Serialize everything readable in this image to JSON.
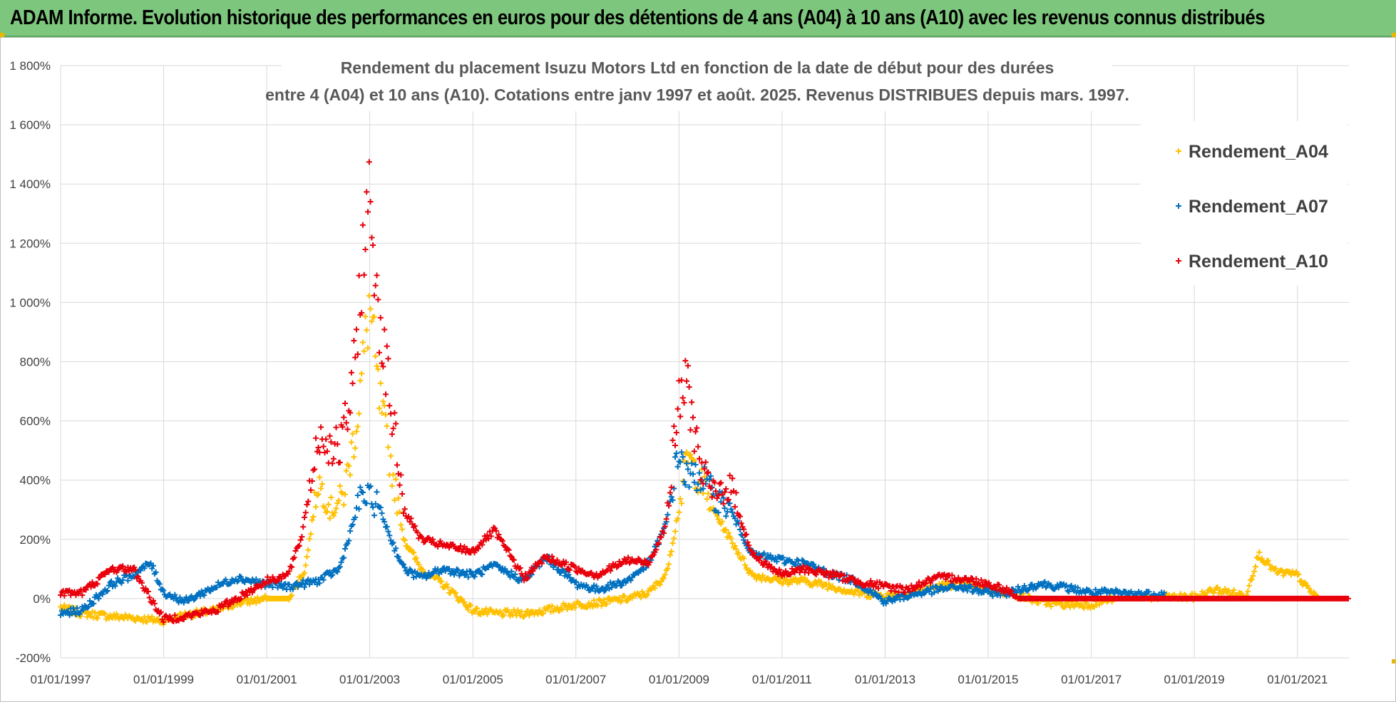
{
  "header": {
    "title": "ADAM Informe. Evolution historique des performances en euros pour des détentions de 4 ans (A04) à 10 ans (A10) avec les revenus connus distribués"
  },
  "chart_data": {
    "type": "scatter",
    "title_line1": "Rendement du placement Isuzu Motors Ltd en fonction de la date de début pour des durées",
    "title_line2": "entre 4 (A04) et 10 ans (A10). Cotations entre janv 1997 et août. 2025. Revenus DISTRIBUES depuis mars. 1997.",
    "x_start": "1997-01-01",
    "x_end": "2022-01-01",
    "xticks": [
      "01/01/1997",
      "01/01/1999",
      "01/01/2001",
      "01/01/2003",
      "01/01/2005",
      "01/01/2007",
      "01/01/2009",
      "01/01/2011",
      "01/01/2013",
      "01/01/2015",
      "01/01/2017",
      "01/01/2019",
      "01/01/2021"
    ],
    "yticks": [
      "-200%",
      "0%",
      "200%",
      "400%",
      "600%",
      "800%",
      "1 000%",
      "1 200%",
      "1 400%",
      "1 600%",
      "1 800%"
    ],
    "ylim": [
      -200,
      1800
    ],
    "grid": true,
    "legend_position": "right",
    "series": [
      {
        "name": "Rendement_A04",
        "color": "#ffc000",
        "end": "2021-06-01",
        "points": [
          [
            "1997-01-01",
            -30
          ],
          [
            "1997-06-01",
            -50
          ],
          [
            "1998-01-01",
            -60
          ],
          [
            "1998-06-01",
            -65
          ],
          [
            "1999-01-01",
            -75
          ],
          [
            "1999-06-01",
            -55
          ],
          [
            "2000-01-01",
            -40
          ],
          [
            "2000-06-01",
            -15
          ],
          [
            "2001-01-01",
            0
          ],
          [
            "2001-06-01",
            0
          ],
          [
            "2001-10-01",
            100
          ],
          [
            "2002-01-01",
            400
          ],
          [
            "2002-04-01",
            300
          ],
          [
            "2002-07-01",
            350
          ],
          [
            "2002-10-01",
            600
          ],
          [
            "2003-01-01",
            1000
          ],
          [
            "2003-03-01",
            700
          ],
          [
            "2003-06-01",
            450
          ],
          [
            "2003-09-01",
            200
          ],
          [
            "2004-01-01",
            100
          ],
          [
            "2004-06-01",
            50
          ],
          [
            "2005-01-01",
            -40
          ],
          [
            "2005-06-01",
            -50
          ],
          [
            "2006-01-01",
            -50
          ],
          [
            "2006-06-01",
            -40
          ],
          [
            "2007-01-01",
            -20
          ],
          [
            "2007-06-01",
            -15
          ],
          [
            "2008-01-01",
            0
          ],
          [
            "2008-06-01",
            20
          ],
          [
            "2008-10-01",
            80
          ],
          [
            "2009-01-01",
            300
          ],
          [
            "2009-03-01",
            480
          ],
          [
            "2009-06-01",
            400
          ],
          [
            "2009-09-01",
            300
          ],
          [
            "2010-01-01",
            200
          ],
          [
            "2010-06-01",
            80
          ],
          [
            "2011-01-01",
            60
          ],
          [
            "2011-06-01",
            60
          ],
          [
            "2012-01-01",
            40
          ],
          [
            "2012-06-01",
            20
          ],
          [
            "2013-01-01",
            10
          ],
          [
            "2013-06-01",
            15
          ],
          [
            "2014-01-01",
            40
          ],
          [
            "2014-06-01",
            50
          ],
          [
            "2015-01-01",
            30
          ],
          [
            "2015-06-01",
            20
          ],
          [
            "2016-01-01",
            -10
          ],
          [
            "2016-06-01",
            -20
          ],
          [
            "2017-01-01",
            -20
          ],
          [
            "2017-06-01",
            0
          ],
          [
            "2018-01-01",
            0
          ],
          [
            "2018-06-01",
            5
          ],
          [
            "2019-01-01",
            5
          ],
          [
            "2019-06-01",
            30
          ],
          [
            "2020-01-01",
            10
          ],
          [
            "2020-04-01",
            150
          ],
          [
            "2020-08-01",
            90
          ],
          [
            "2021-01-01",
            80
          ],
          [
            "2021-03-01",
            40
          ],
          [
            "2021-06-01",
            0
          ]
        ]
      },
      {
        "name": "Rendement_A07",
        "color": "#0070c0",
        "end": "2018-06-01",
        "points": [
          [
            "1997-01-01",
            -50
          ],
          [
            "1997-06-01",
            -40
          ],
          [
            "1998-01-01",
            50
          ],
          [
            "1998-06-01",
            80
          ],
          [
            "1998-10-01",
            120
          ],
          [
            "1999-01-01",
            20
          ],
          [
            "1999-06-01",
            -10
          ],
          [
            "2000-01-01",
            40
          ],
          [
            "2000-06-01",
            70
          ],
          [
            "2001-01-01",
            50
          ],
          [
            "2001-06-01",
            40
          ],
          [
            "2002-01-01",
            60
          ],
          [
            "2002-06-01",
            100
          ],
          [
            "2002-09-01",
            250
          ],
          [
            "2002-11-01",
            350
          ],
          [
            "2003-03-01",
            320
          ],
          [
            "2003-06-01",
            200
          ],
          [
            "2003-09-01",
            100
          ],
          [
            "2004-01-01",
            70
          ],
          [
            "2004-06-01",
            100
          ],
          [
            "2005-01-01",
            80
          ],
          [
            "2005-06-01",
            110
          ],
          [
            "2006-01-01",
            60
          ],
          [
            "2006-06-01",
            140
          ],
          [
            "2007-01-01",
            50
          ],
          [
            "2007-06-01",
            30
          ],
          [
            "2008-01-01",
            60
          ],
          [
            "2008-06-01",
            120
          ],
          [
            "2008-10-01",
            250
          ],
          [
            "2009-01-01",
            500
          ],
          [
            "2009-03-01",
            400
          ],
          [
            "2009-06-01",
            420
          ],
          [
            "2009-09-01",
            350
          ],
          [
            "2010-01-01",
            300
          ],
          [
            "2010-06-01",
            150
          ],
          [
            "2011-01-01",
            130
          ],
          [
            "2011-06-01",
            120
          ],
          [
            "2012-01-01",
            80
          ],
          [
            "2012-06-01",
            60
          ],
          [
            "2013-01-01",
            -10
          ],
          [
            "2013-06-01",
            10
          ],
          [
            "2014-01-01",
            30
          ],
          [
            "2014-06-01",
            40
          ],
          [
            "2015-01-01",
            20
          ],
          [
            "2015-06-01",
            20
          ],
          [
            "2016-01-01",
            50
          ],
          [
            "2016-06-01",
            40
          ],
          [
            "2017-01-01",
            20
          ],
          [
            "2017-06-01",
            20
          ],
          [
            "2018-01-01",
            15
          ],
          [
            "2018-06-01",
            15
          ]
        ]
      },
      {
        "name": "Rendement_A10",
        "color": "#e8000b",
        "end": "2022-01-01",
        "points": [
          [
            "1997-01-01",
            20
          ],
          [
            "1997-06-01",
            20
          ],
          [
            "1998-01-01",
            100
          ],
          [
            "1998-06-01",
            100
          ],
          [
            "1998-10-01",
            0
          ],
          [
            "1999-01-01",
            -70
          ],
          [
            "1999-06-01",
            -60
          ],
          [
            "2000-01-01",
            -40
          ],
          [
            "2000-06-01",
            0
          ],
          [
            "2001-01-01",
            60
          ],
          [
            "2001-06-01",
            80
          ],
          [
            "2001-09-01",
            200
          ],
          [
            "2002-01-01",
            550
          ],
          [
            "2002-06-01",
            500
          ],
          [
            "2002-09-01",
            700
          ],
          [
            "2002-11-01",
            1100
          ],
          [
            "2003-01-01",
            1350
          ],
          [
            "2003-03-01",
            1000
          ],
          [
            "2003-06-01",
            650
          ],
          [
            "2003-09-01",
            300
          ],
          [
            "2004-01-01",
            200
          ],
          [
            "2004-06-01",
            180
          ],
          [
            "2005-01-01",
            160
          ],
          [
            "2005-06-01",
            230
          ],
          [
            "2006-01-01",
            70
          ],
          [
            "2006-06-01",
            140
          ],
          [
            "2007-01-01",
            100
          ],
          [
            "2007-06-01",
            80
          ],
          [
            "2008-01-01",
            130
          ],
          [
            "2008-06-01",
            120
          ],
          [
            "2008-10-01",
            250
          ],
          [
            "2009-01-01",
            680
          ],
          [
            "2009-03-01",
            720
          ],
          [
            "2009-06-01",
            450
          ],
          [
            "2009-09-01",
            350
          ],
          [
            "2010-01-01",
            380
          ],
          [
            "2010-06-01",
            150
          ],
          [
            "2011-01-01",
            80
          ],
          [
            "2011-06-01",
            100
          ],
          [
            "2012-01-01",
            80
          ],
          [
            "2012-06-01",
            60
          ],
          [
            "2013-01-01",
            40
          ],
          [
            "2013-06-01",
            30
          ],
          [
            "2014-01-01",
            70
          ],
          [
            "2014-06-01",
            70
          ],
          [
            "2015-01-01",
            50
          ],
          [
            "2015-06-01",
            25
          ],
          [
            "2015-08-01",
            0
          ],
          [
            "2022-01-01",
            0
          ]
        ]
      }
    ]
  }
}
